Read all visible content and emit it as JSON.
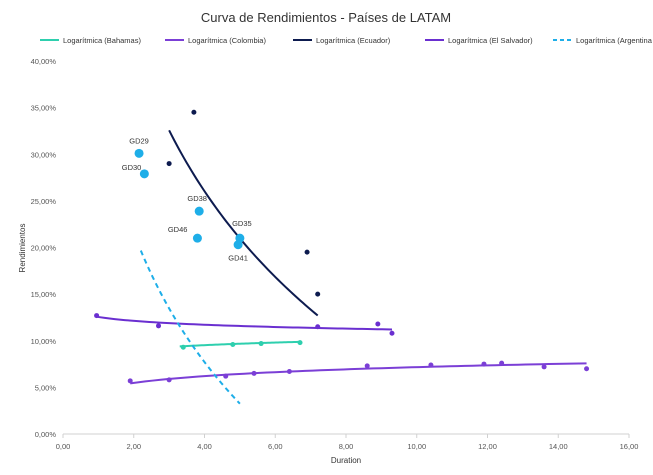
{
  "chart_data": {
    "type": "scatter",
    "title": "Curva de Rendimientos - Países de LATAM",
    "xlabel": "Duration",
    "ylabel": "Rendimientos",
    "xlim": [
      0,
      16
    ],
    "ylim": [
      0,
      0.4
    ],
    "x_ticks": [
      0,
      2,
      4,
      6,
      8,
      10,
      12,
      14,
      16
    ],
    "x_tick_labels": [
      "0,00",
      "2,00",
      "4,00",
      "6,00",
      "8,00",
      "10,00",
      "12,00",
      "14,00",
      "16,00"
    ],
    "y_ticks": [
      0,
      0.05,
      0.1,
      0.15,
      0.2,
      0.25,
      0.3,
      0.35,
      0.4
    ],
    "y_tick_labels": [
      "0,00%",
      "5,00%",
      "10,00%",
      "15,00%",
      "20,00%",
      "25,00%",
      "30,00%",
      "35,00%",
      "40,00%"
    ],
    "grid": false,
    "legend_position": "top",
    "legend": [
      {
        "label": "Logarítmica (Bahamas)",
        "color": "#2ecfae",
        "dash": false
      },
      {
        "label": "Logarítmica (Colombia)",
        "color": "#7b3fd6",
        "dash": false
      },
      {
        "label": "Logarítmica (Ecuador)",
        "color": "#0d1b4f",
        "dash": false
      },
      {
        "label": "Logarítmica (El Salvador)",
        "color": "#6a2fd0",
        "dash": false
      },
      {
        "label": "Logarítmica (Argentina )",
        "color": "#1eaee8",
        "dash": true
      }
    ],
    "series": [
      {
        "color": "#2ecfae",
        "marker_size": 2.5,
        "points": [
          [
            3.4,
            0.093
          ],
          [
            4.8,
            0.096
          ],
          [
            5.6,
            0.097
          ],
          [
            6.7,
            0.098
          ]
        ],
        "trend": {
          "a": 0.0857,
          "b": 0.0069,
          "x0": 3.3,
          "x1": 6.7
        }
      },
      {
        "color": "#7b3fd6",
        "marker_size": 2.5,
        "points": [
          [
            1.9,
            0.057
          ],
          [
            3.0,
            0.058
          ],
          [
            4.6,
            0.062
          ],
          [
            5.4,
            0.065
          ],
          [
            6.4,
            0.067
          ],
          [
            8.6,
            0.073
          ],
          [
            10.4,
            0.074
          ],
          [
            11.9,
            0.075
          ],
          [
            12.4,
            0.076
          ],
          [
            13.6,
            0.072
          ],
          [
            14.8,
            0.07
          ]
        ],
        "trend": {
          "a": 0.0475,
          "b": 0.0105,
          "x0": 1.9,
          "x1": 14.8
        }
      },
      {
        "color": "#0d1b4f",
        "marker_size": 2.5,
        "points": [
          [
            3.0,
            0.29
          ],
          [
            3.7,
            0.345
          ],
          [
            6.9,
            0.195
          ],
          [
            7.2,
            0.15
          ]
        ],
        "trend": {
          "a": 0.5748,
          "b": -0.2268,
          "x0": 3.0,
          "x1": 7.2
        }
      },
      {
        "color": "#6a2fd0",
        "marker_size": 2.5,
        "points": [
          [
            0.95,
            0.127
          ],
          [
            2.7,
            0.116
          ],
          [
            7.2,
            0.115
          ],
          [
            8.9,
            0.118
          ],
          [
            9.3,
            0.108
          ]
        ],
        "trend": {
          "a": 0.1255,
          "b": -0.006,
          "x0": 0.9,
          "x1": 9.3
        }
      },
      {
        "color": "#1eaee8",
        "marker_size": 4.5,
        "points": [
          [
            2.15,
            0.301
          ],
          [
            2.3,
            0.279
          ],
          [
            3.85,
            0.239
          ],
          [
            3.8,
            0.21
          ],
          [
            5.0,
            0.21
          ],
          [
            4.95,
            0.203
          ]
        ],
        "labels": [
          "GD29",
          "GD30",
          "GD38",
          "GD46",
          "GD35",
          "GD41"
        ],
        "trend": {
          "a": 0.3544,
          "b": -0.2,
          "x0": 2.2,
          "x1": 5.0,
          "dash": true
        }
      }
    ]
  }
}
